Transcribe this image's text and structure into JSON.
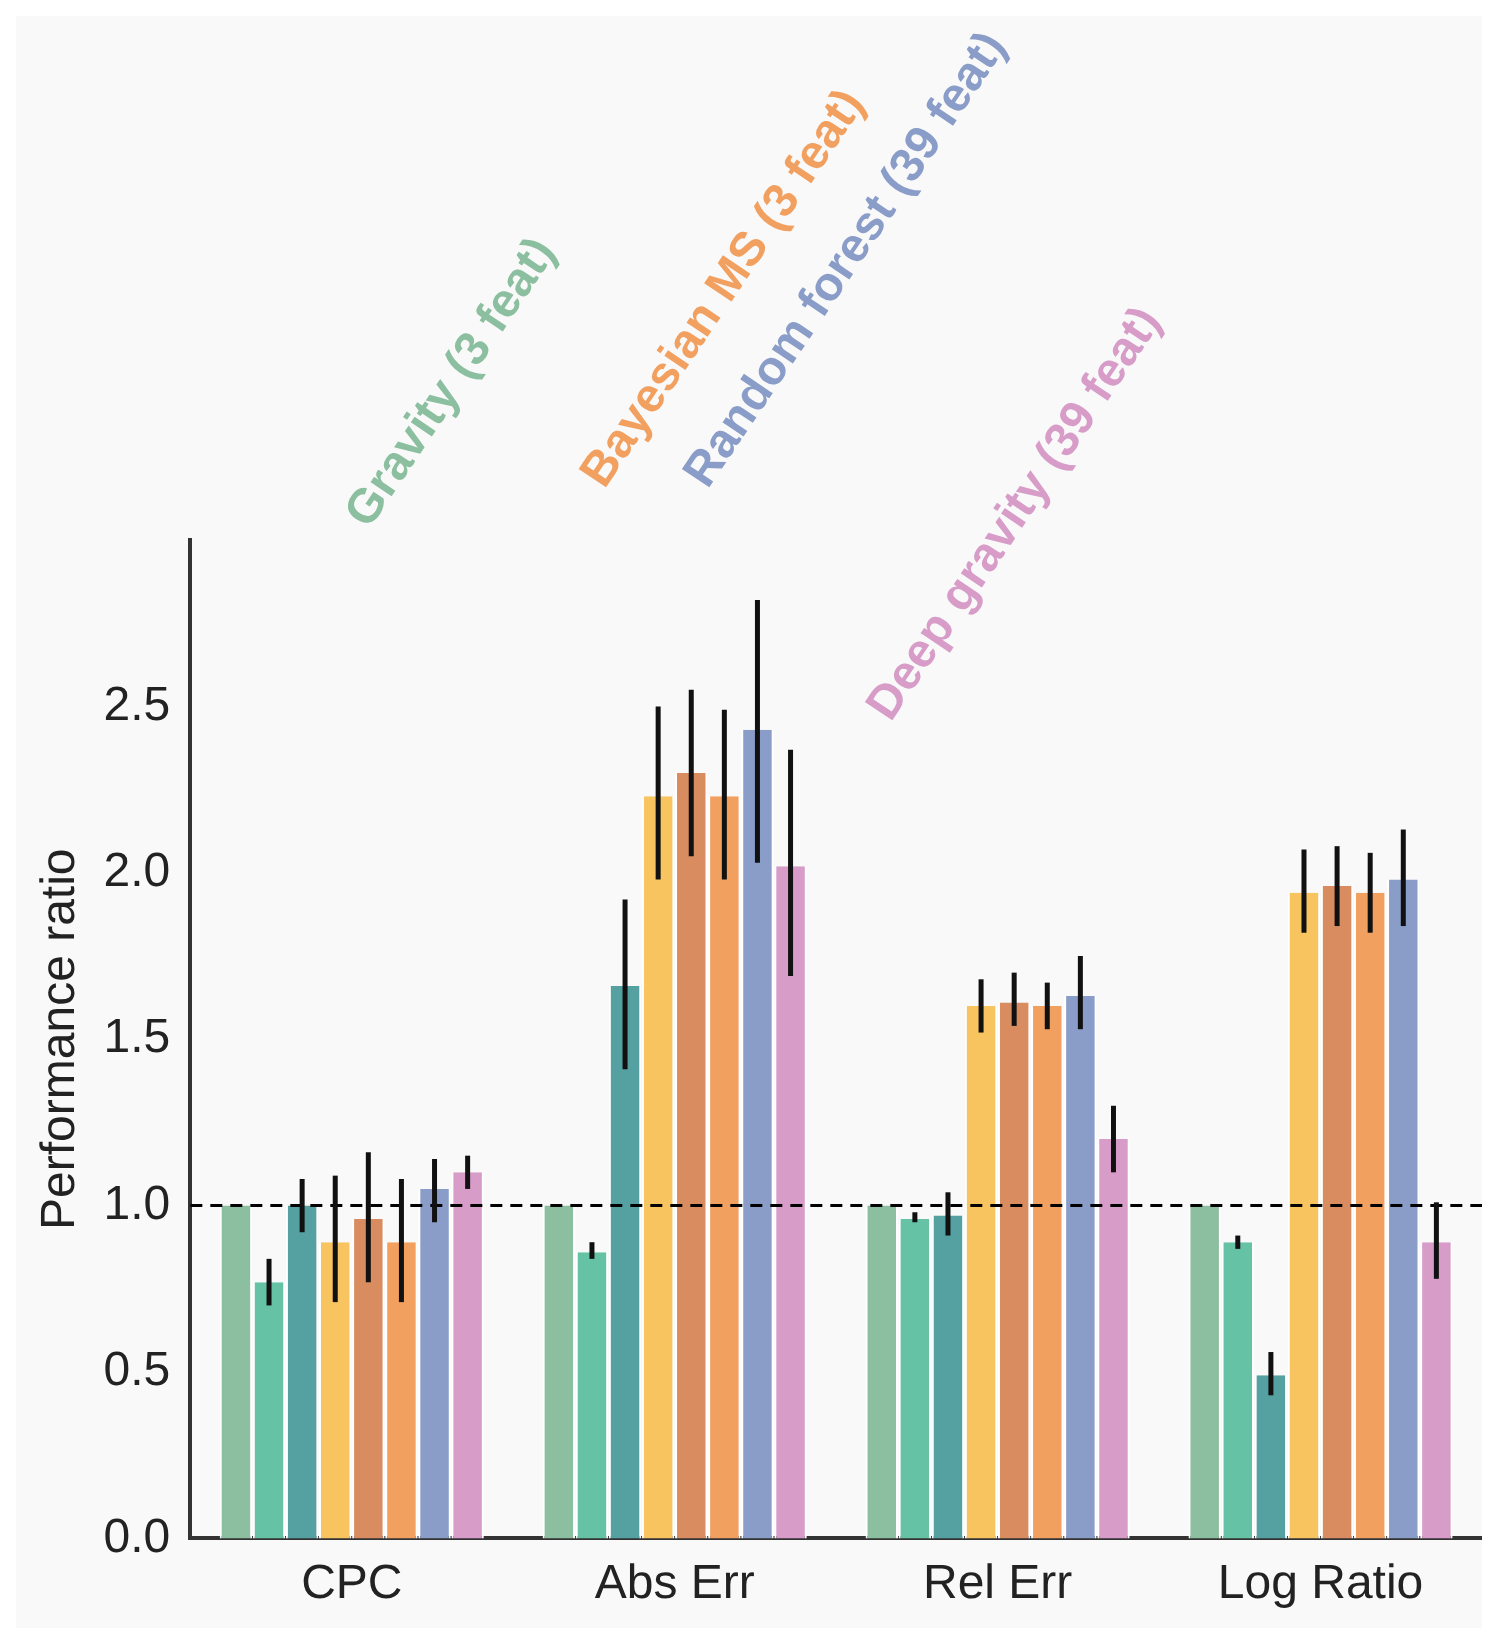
{
  "chart_data": {
    "type": "bar",
    "ylabel": "Performance ratio",
    "categories": [
      "CPC",
      "Abs Err",
      "Rel Err",
      "Log Ratio"
    ],
    "series": [
      {
        "name": "Gravity (3 feat)",
        "color": "#8bbf9f",
        "values": [
          1.0,
          1.0,
          1.0,
          1.0
        ]
      },
      {
        "color": "#66c2a5",
        "values": [
          0.77,
          0.86,
          0.96,
          0.89
        ],
        "errors": [
          [
            0.7,
            0.84
          ],
          [
            0.84,
            0.89
          ],
          [
            0.95,
            0.98
          ],
          [
            0.87,
            0.91
          ]
        ]
      },
      {
        "color": "#55a0a0",
        "values": [
          1.0,
          1.66,
          0.97,
          0.49
        ],
        "errors": [
          [
            0.92,
            1.08
          ],
          [
            1.41,
            1.92
          ],
          [
            0.91,
            1.04
          ],
          [
            0.43,
            0.56
          ]
        ]
      },
      {
        "color": "#f8c460",
        "values": [
          0.89,
          2.23,
          1.6,
          1.94
        ],
        "errors": [
          [
            0.71,
            1.09
          ],
          [
            1.98,
            2.5
          ],
          [
            1.52,
            1.68
          ],
          [
            1.82,
            2.07
          ]
        ]
      },
      {
        "color": "#d88c60",
        "values": [
          0.96,
          2.3,
          1.61,
          1.96
        ],
        "errors": [
          [
            0.77,
            1.16
          ],
          [
            2.05,
            2.55
          ],
          [
            1.54,
            1.7
          ],
          [
            1.84,
            2.08
          ]
        ]
      },
      {
        "name": "Bayesian MS (3 feat)",
        "color": "#f2a060",
        "values": [
          0.89,
          2.23,
          1.6,
          1.94
        ],
        "errors": [
          [
            0.71,
            1.08
          ],
          [
            1.98,
            2.49
          ],
          [
            1.53,
            1.67
          ],
          [
            1.82,
            2.06
          ]
        ]
      },
      {
        "name": "Random forest (39 feat)",
        "color": "#8a9cc8",
        "values": [
          1.05,
          2.43,
          1.63,
          1.98
        ],
        "errors": [
          [
            0.95,
            1.14
          ],
          [
            2.03,
            2.82
          ],
          [
            1.53,
            1.75
          ],
          [
            1.84,
            2.13
          ]
        ]
      },
      {
        "name": "Deep gravity (39 feat)",
        "color": "#d79cc8",
        "values": [
          1.1,
          2.02,
          1.2,
          0.89
        ],
        "errors": [
          [
            1.05,
            1.15
          ],
          [
            1.69,
            2.37
          ],
          [
            1.1,
            1.3
          ],
          [
            0.78,
            1.01
          ]
        ]
      }
    ],
    "ylim": [
      0,
      3.0
    ],
    "yticks": [
      {
        "value": 0,
        "label": "0.0"
      },
      0.5,
      {
        "value": 1,
        "label": "1.0"
      },
      1.5,
      {
        "value": 2,
        "label": "2.0"
      },
      2.5
    ],
    "ref_lines": [
      {
        "axis": "y",
        "value": 1.0,
        "line_style": "dashed",
        "color": "#000000"
      }
    ],
    "grid": false,
    "legend": "top"
  }
}
